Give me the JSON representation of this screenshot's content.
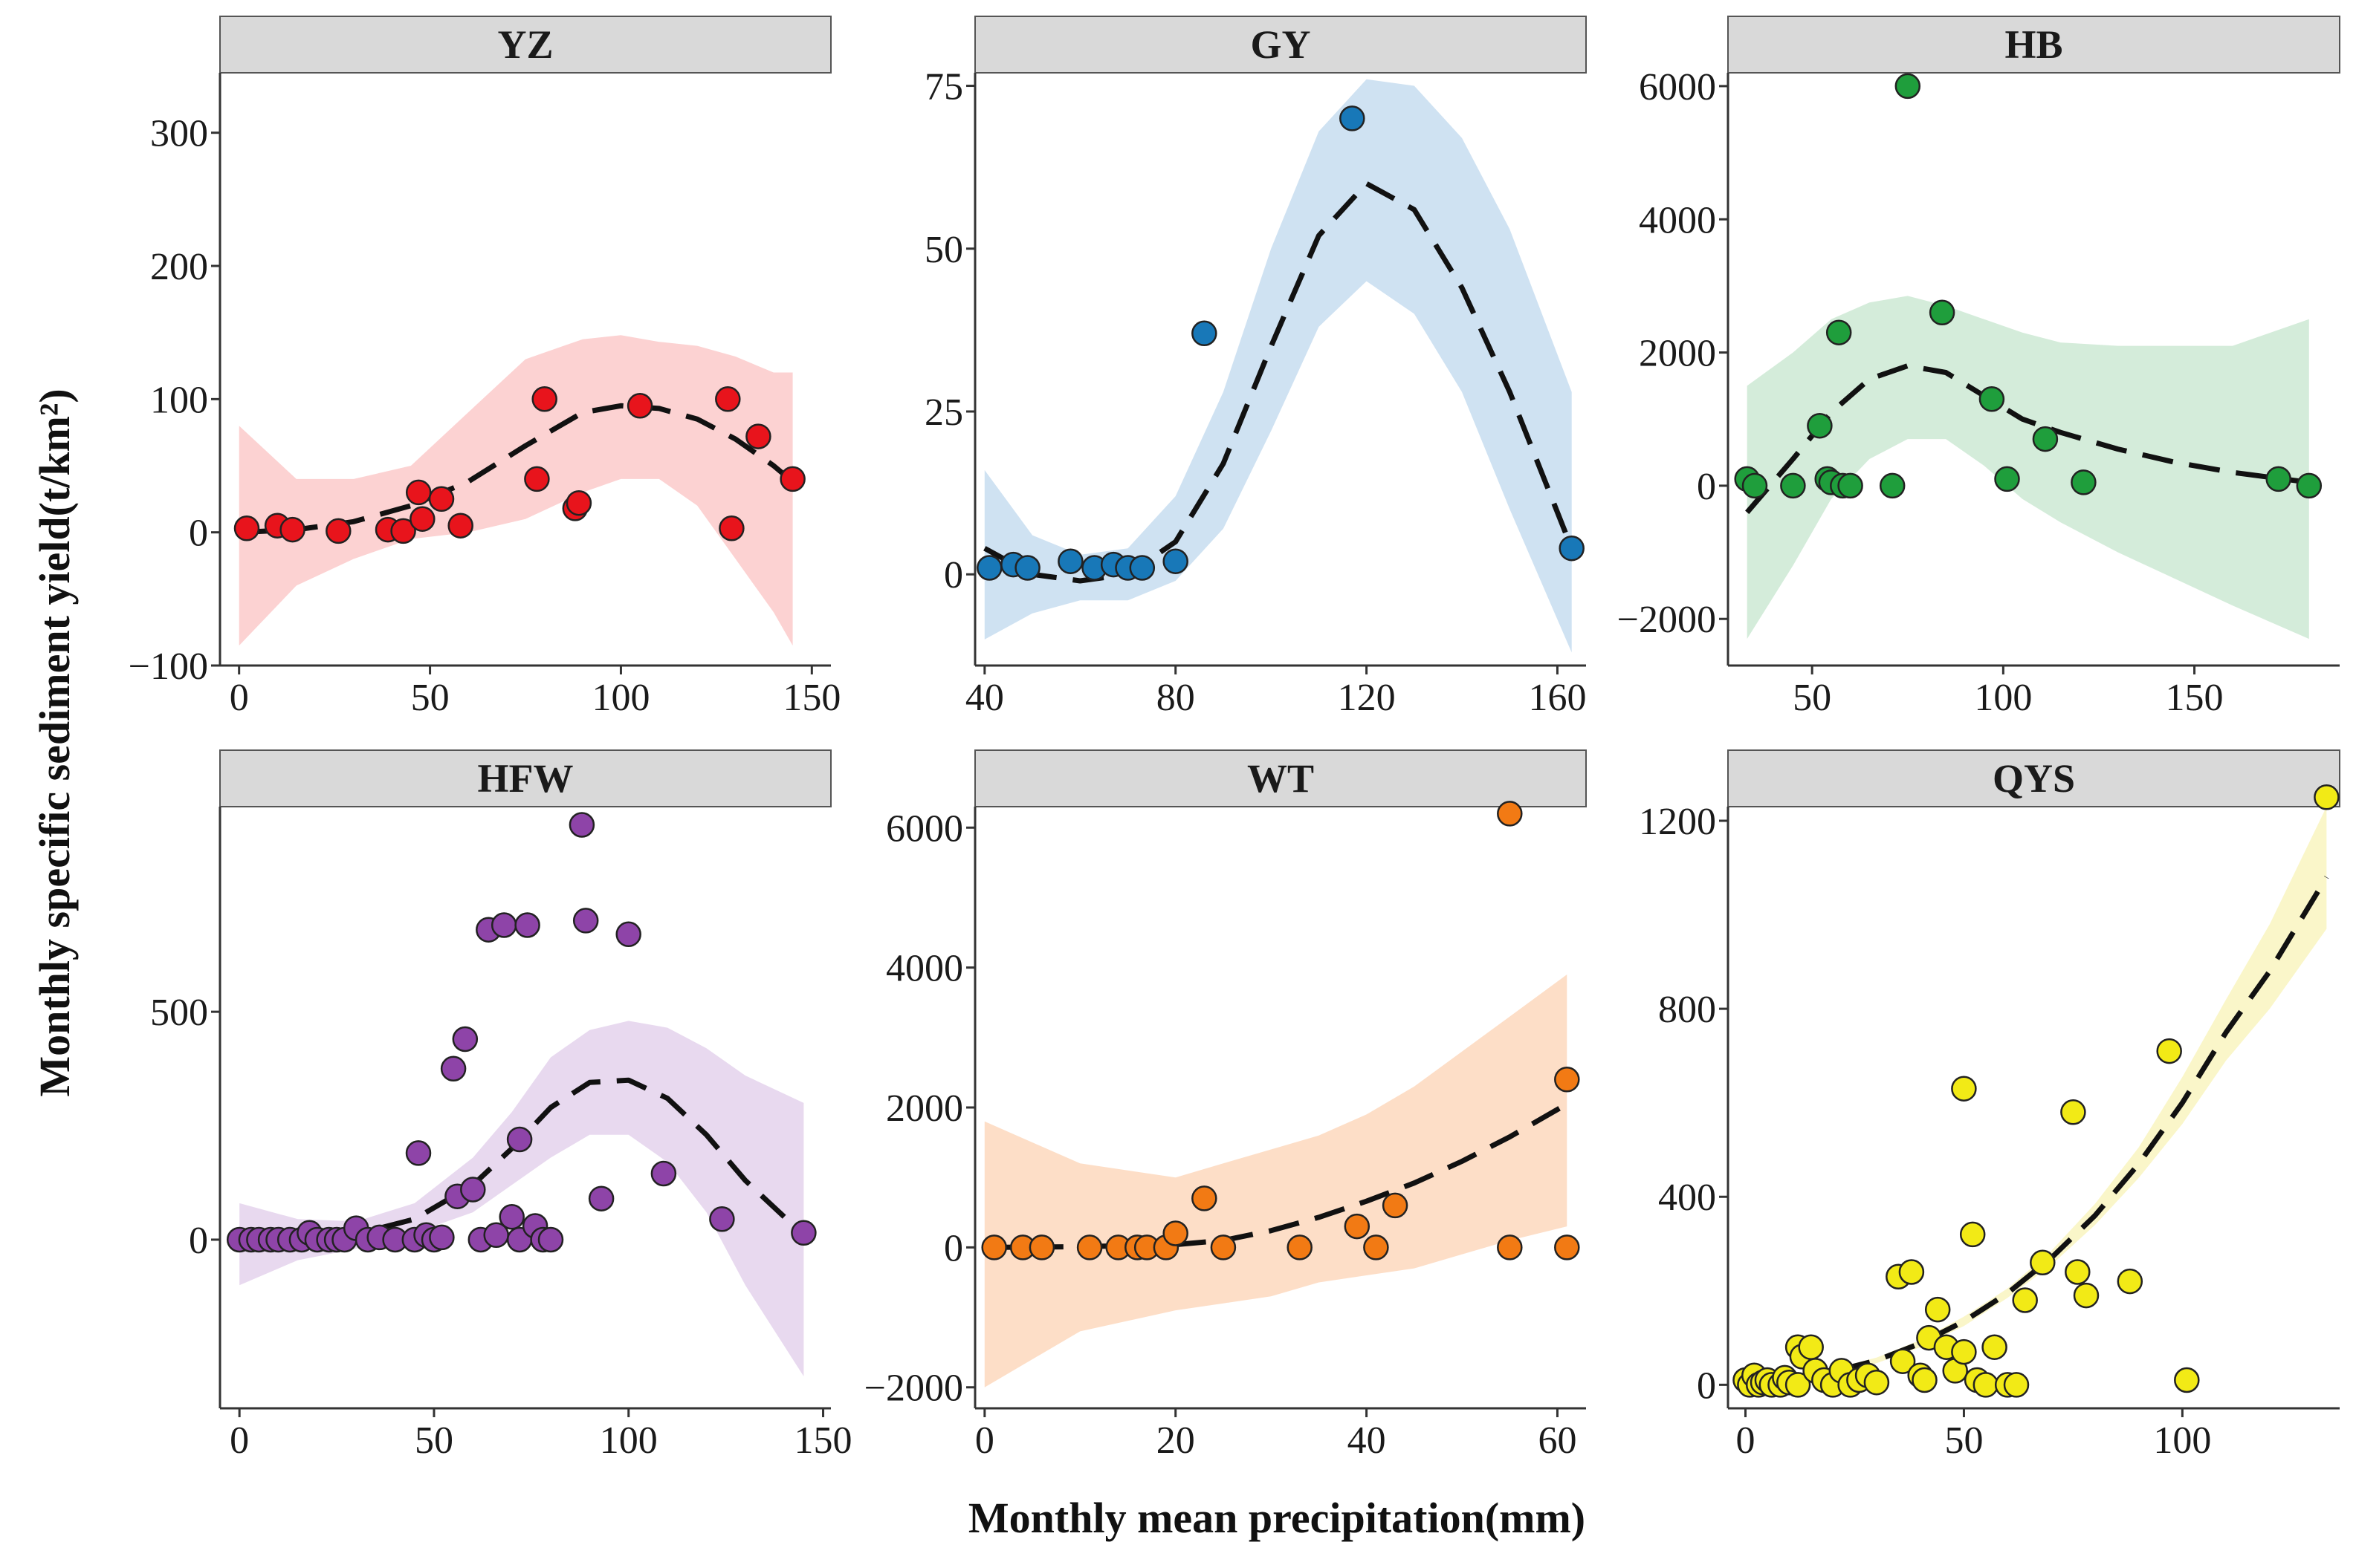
{
  "figure": {
    "ylabel": "Monthly specific sediment yield(t/km²)",
    "xlabel": "Monthly mean precipitation(mm)"
  },
  "chart_data": [
    {
      "type": "scatter",
      "panel": "YZ",
      "color": "#e8141c",
      "band_color": "#fbcaca",
      "xlim": [
        -5,
        155
      ],
      "ylim": [
        -100,
        345
      ],
      "xticks": [
        0,
        50,
        100,
        150
      ],
      "yticks": [
        -100,
        0,
        100,
        200,
        300
      ],
      "x": [
        2,
        10,
        14,
        26,
        39,
        43,
        47,
        48,
        53,
        58,
        78,
        80,
        88,
        89,
        105,
        128,
        129,
        136,
        145
      ],
      "y": [
        3,
        5,
        2,
        1,
        2,
        1,
        30,
        10,
        25,
        5,
        40,
        100,
        18,
        22,
        95,
        100,
        3,
        72,
        40
      ],
      "fit": {
        "x": [
          0,
          15,
          30,
          45,
          60,
          75,
          90,
          100,
          110,
          120,
          130,
          140,
          145
        ],
        "y": [
          0,
          2,
          8,
          20,
          38,
          65,
          90,
          95,
          93,
          85,
          70,
          50,
          38
        ]
      },
      "band_upper": [
        80,
        40,
        40,
        50,
        90,
        130,
        145,
        148,
        143,
        140,
        132,
        120,
        120
      ],
      "band_lower": [
        -85,
        -40,
        -20,
        -5,
        0,
        10,
        30,
        40,
        40,
        20,
        -20,
        -60,
        -85
      ]
    },
    {
      "type": "scatter",
      "panel": "GY",
      "color": "#1878b8",
      "band_color": "#c7ddf0",
      "xlim": [
        38,
        166
      ],
      "ylim": [
        -14,
        77
      ],
      "xticks": [
        40,
        80,
        120,
        160
      ],
      "yticks": [
        0,
        25,
        50,
        75
      ],
      "x": [
        41,
        46,
        49,
        58,
        63,
        67,
        70,
        73,
        80,
        86,
        117,
        163
      ],
      "y": [
        1,
        1.5,
        1,
        2,
        1,
        1.5,
        1,
        1,
        2,
        37,
        70,
        4
      ],
      "fit": {
        "x": [
          40,
          50,
          60,
          70,
          80,
          90,
          100,
          110,
          120,
          130,
          140,
          150,
          163
        ],
        "y": [
          4,
          0,
          -1,
          0,
          5,
          17,
          35,
          52,
          60,
          56,
          44,
          28,
          4
        ]
      },
      "band_upper": [
        16,
        6,
        3,
        4,
        12,
        28,
        50,
        68,
        76,
        75,
        67,
        53,
        28
      ],
      "band_lower": [
        -10,
        -6,
        -4,
        -4,
        -1,
        7,
        22,
        38,
        45,
        40,
        28,
        10,
        -12
      ]
    },
    {
      "type": "scatter",
      "panel": "HB",
      "color": "#1f9e3c",
      "band_color": "#cde9d3",
      "xlim": [
        28,
        188
      ],
      "ylim": [
        -2700,
        6200
      ],
      "xticks": [
        50,
        100,
        150
      ],
      "yticks": [
        -2000,
        0,
        2000,
        4000,
        6000
      ],
      "x": [
        33,
        35,
        45,
        52,
        54,
        55,
        57,
        58,
        60,
        71,
        75,
        84,
        97,
        101,
        111,
        121,
        172,
        180
      ],
      "y": [
        100,
        0,
        0,
        900,
        100,
        50,
        2300,
        0,
        0,
        0,
        6000,
        2600,
        1300,
        100,
        700,
        50,
        100,
        0
      ],
      "fit": {
        "x": [
          33,
          45,
          55,
          65,
          75,
          85,
          95,
          105,
          115,
          130,
          145,
          160,
          180
        ],
        "y": [
          -400,
          400,
          1100,
          1600,
          1800,
          1700,
          1350,
          1000,
          800,
          550,
          350,
          200,
          50
        ]
      },
      "band_upper": [
        1500,
        2000,
        2500,
        2750,
        2850,
        2700,
        2500,
        2300,
        2150,
        2100,
        2100,
        2100,
        2500
      ],
      "band_lower": [
        -2300,
        -1200,
        -200,
        400,
        700,
        700,
        300,
        -200,
        -550,
        -1000,
        -1400,
        -1800,
        -2300
      ]
    },
    {
      "type": "scatter",
      "panel": "HFW",
      "color": "#8e44a8",
      "band_color": "#e4d2ec",
      "xlim": [
        -5,
        152
      ],
      "ylim": [
        -370,
        950
      ],
      "xticks": [
        0,
        50,
        100,
        150
      ],
      "yticks": [
        0,
        500
      ],
      "x": [
        0,
        3,
        5,
        8,
        10,
        13,
        16,
        18,
        20,
        23,
        25,
        27,
        30,
        33,
        36,
        40,
        45,
        46,
        48,
        50,
        52,
        55,
        56,
        58,
        60,
        62,
        64,
        66,
        68,
        70,
        72,
        72,
        74,
        76,
        78,
        80,
        88,
        89,
        93,
        100,
        109,
        124,
        145
      ],
      "y": [
        0,
        0,
        0,
        0,
        0,
        0,
        0,
        15,
        0,
        0,
        0,
        0,
        25,
        0,
        5,
        0,
        0,
        190,
        10,
        0,
        5,
        375,
        95,
        440,
        110,
        0,
        680,
        10,
        690,
        50,
        0,
        220,
        690,
        30,
        0,
        0,
        910,
        700,
        90,
        670,
        145,
        45,
        15
      ],
      "fit": {
        "x": [
          0,
          15,
          30,
          45,
          60,
          70,
          80,
          90,
          100,
          110,
          120,
          130,
          145
        ],
        "y": [
          0,
          2,
          12,
          45,
          120,
          200,
          290,
          345,
          350,
          310,
          230,
          130,
          10
        ]
      },
      "band_upper": [
        80,
        45,
        40,
        80,
        180,
        280,
        400,
        460,
        480,
        465,
        420,
        360,
        300
      ],
      "band_lower": [
        -100,
        -45,
        -20,
        15,
        60,
        120,
        180,
        230,
        230,
        170,
        60,
        -100,
        -300
      ]
    },
    {
      "type": "scatter",
      "panel": "WT",
      "color": "#f27a14",
      "band_color": "#fdd8bd",
      "xlim": [
        -1,
        63
      ],
      "ylim": [
        -2300,
        6300
      ],
      "xticks": [
        0,
        20,
        40,
        60
      ],
      "yticks": [
        -2000,
        0,
        2000,
        4000,
        6000
      ],
      "x": [
        1,
        4,
        6,
        11,
        14,
        16,
        17,
        19,
        20,
        23,
        25,
        33,
        39,
        41,
        43,
        55,
        55,
        61,
        61
      ],
      "y": [
        0,
        0,
        0,
        0,
        0,
        0,
        0,
        0,
        200,
        700,
        0,
        0,
        300,
        0,
        600,
        6200,
        0,
        2400,
        0
      ],
      "fit": {
        "x": [
          0,
          10,
          20,
          25,
          30,
          35,
          40,
          45,
          50,
          55,
          61
        ],
        "y": [
          0,
          10,
          40,
          100,
          240,
          430,
          660,
          920,
          1230,
          1580,
          2050
        ]
      },
      "band_upper": [
        1800,
        1200,
        1000,
        1200,
        1400,
        1600,
        1900,
        2300,
        2800,
        3300,
        3900
      ],
      "band_lower": [
        -2000,
        -1200,
        -900,
        -800,
        -700,
        -500,
        -400,
        -300,
        -100,
        100,
        300
      ]
    },
    {
      "type": "scatter",
      "panel": "QYS",
      "color": "#f2ea16",
      "band_color": "#f9f5c0",
      "xlim": [
        -4,
        136
      ],
      "ylim": [
        -50,
        1230
      ],
      "xticks": [
        0,
        50,
        100
      ],
      "yticks": [
        0,
        400,
        800,
        1200
      ],
      "x": [
        0,
        1,
        2,
        3,
        4,
        5,
        6,
        8,
        9,
        10,
        12,
        12,
        13,
        15,
        16,
        18,
        20,
        22,
        24,
        26,
        28,
        30,
        35,
        36,
        38,
        40,
        41,
        42,
        44,
        46,
        48,
        50,
        50,
        52,
        53,
        55,
        57,
        60,
        62,
        64,
        68,
        75,
        76,
        78,
        88,
        97,
        101,
        133
      ],
      "y": [
        10,
        0,
        20,
        0,
        5,
        10,
        0,
        0,
        15,
        5,
        80,
        0,
        60,
        80,
        30,
        10,
        0,
        30,
        0,
        10,
        20,
        5,
        230,
        50,
        240,
        20,
        10,
        100,
        160,
        80,
        30,
        70,
        630,
        320,
        10,
        0,
        80,
        0,
        0,
        180,
        260,
        580,
        240,
        190,
        220,
        710,
        10,
        1250
      ],
      "fit": {
        "x": [
          0,
          10,
          20,
          30,
          40,
          50,
          60,
          70,
          80,
          90,
          100,
          110,
          120,
          133
        ],
        "y": [
          3,
          12,
          28,
          52,
          88,
          135,
          195,
          270,
          360,
          470,
          600,
          750,
          880,
          1080
        ]
      },
      "band_upper": [
        20,
        20,
        34,
        58,
        95,
        145,
        205,
        285,
        385,
        505,
        655,
        820,
        980,
        1230
      ],
      "band_lower": [
        -10,
        4,
        22,
        46,
        80,
        125,
        185,
        255,
        340,
        440,
        555,
        690,
        800,
        970
      ]
    }
  ]
}
